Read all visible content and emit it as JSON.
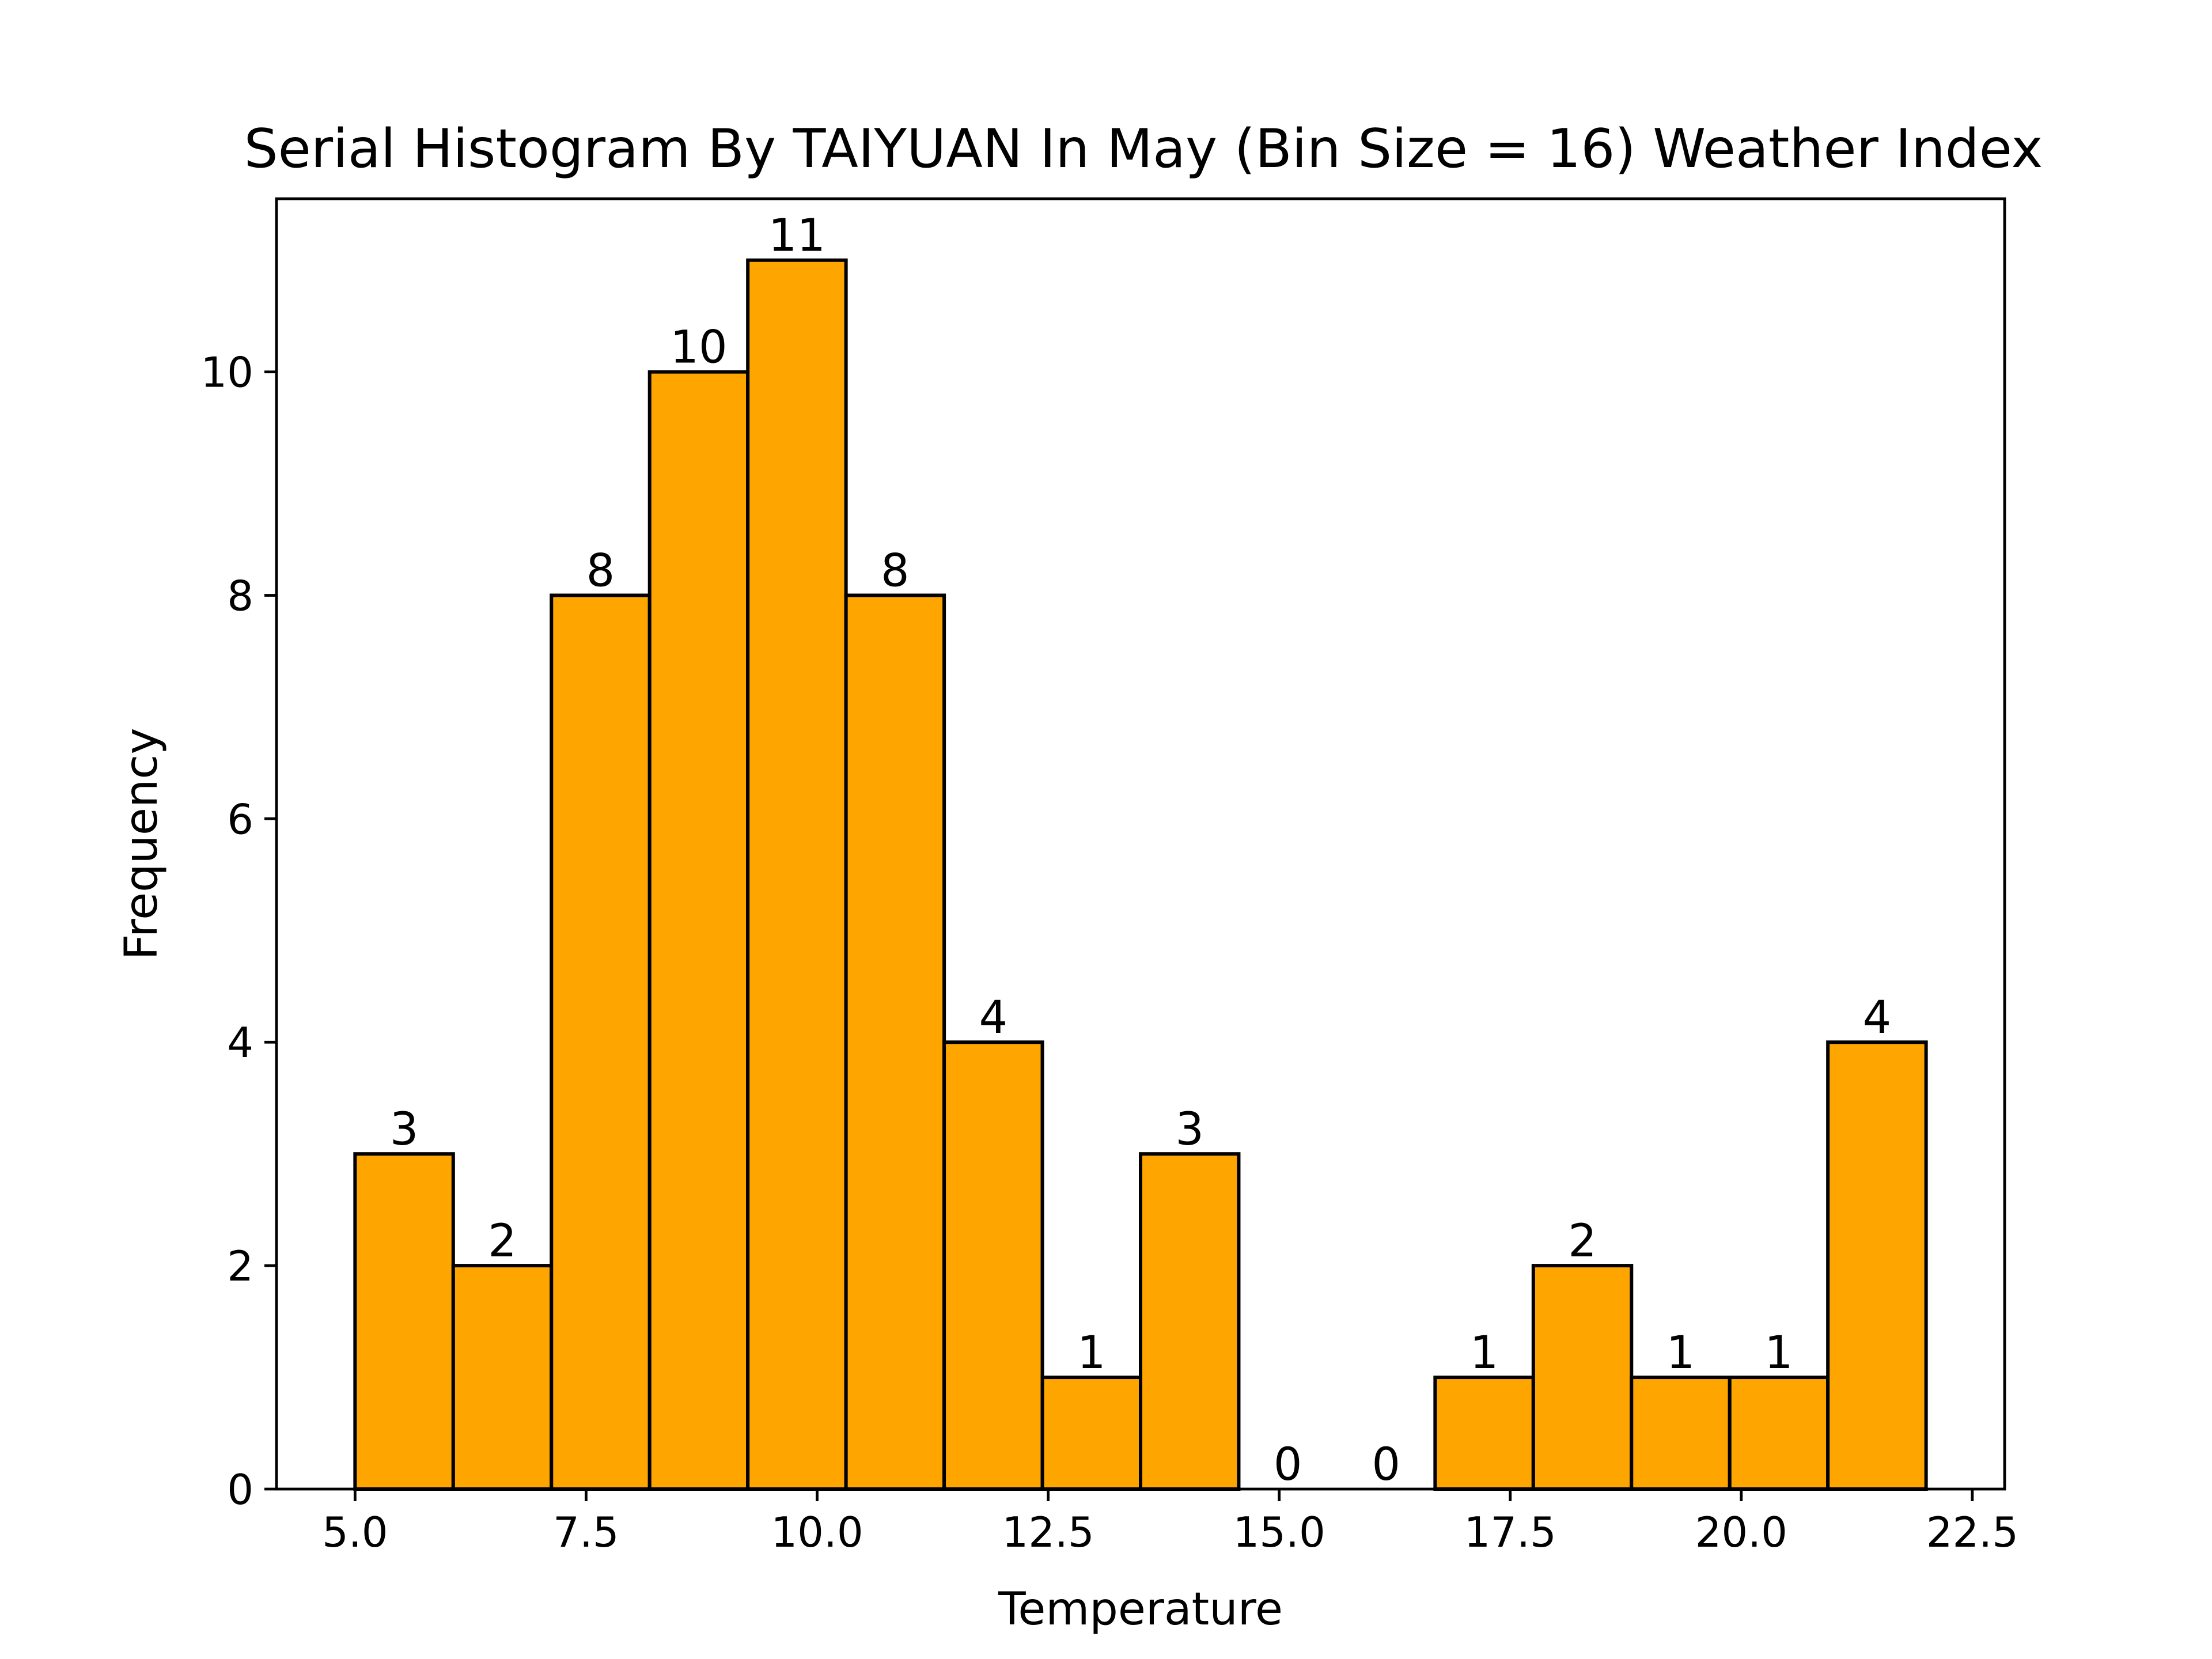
{
  "chart_data": {
    "type": "bar",
    "title": "Serial Histogram By TAIYUAN In May (Bin Size = 16) Weather Index",
    "xlabel": "Temperature",
    "ylabel": "Frequency",
    "bin_edges": [
      5.0,
      6.0625,
      7.125,
      8.1875,
      9.25,
      10.3125,
      11.375,
      12.4375,
      13.5,
      14.5625,
      15.625,
      16.6875,
      17.75,
      18.8125,
      19.875,
      20.9375,
      22.0
    ],
    "values": [
      3,
      2,
      8,
      10,
      11,
      8,
      4,
      1,
      3,
      0,
      0,
      1,
      2,
      1,
      1,
      4
    ],
    "xlim": [
      4.15,
      22.85
    ],
    "ylim": [
      0,
      11.55
    ],
    "xticks": [
      5.0,
      7.5,
      10.0,
      12.5,
      15.0,
      17.5,
      20.0,
      22.5
    ],
    "xtick_labels": [
      "5.0",
      "7.5",
      "10.0",
      "12.5",
      "15.0",
      "17.5",
      "20.0",
      "22.5"
    ],
    "yticks": [
      0,
      2,
      4,
      6,
      8,
      10
    ],
    "ytick_labels": [
      "0",
      "2",
      "4",
      "6",
      "8",
      "10"
    ],
    "grid": false,
    "legend": "none",
    "bar_color": "#FFA500",
    "edge_color": "#000000"
  }
}
